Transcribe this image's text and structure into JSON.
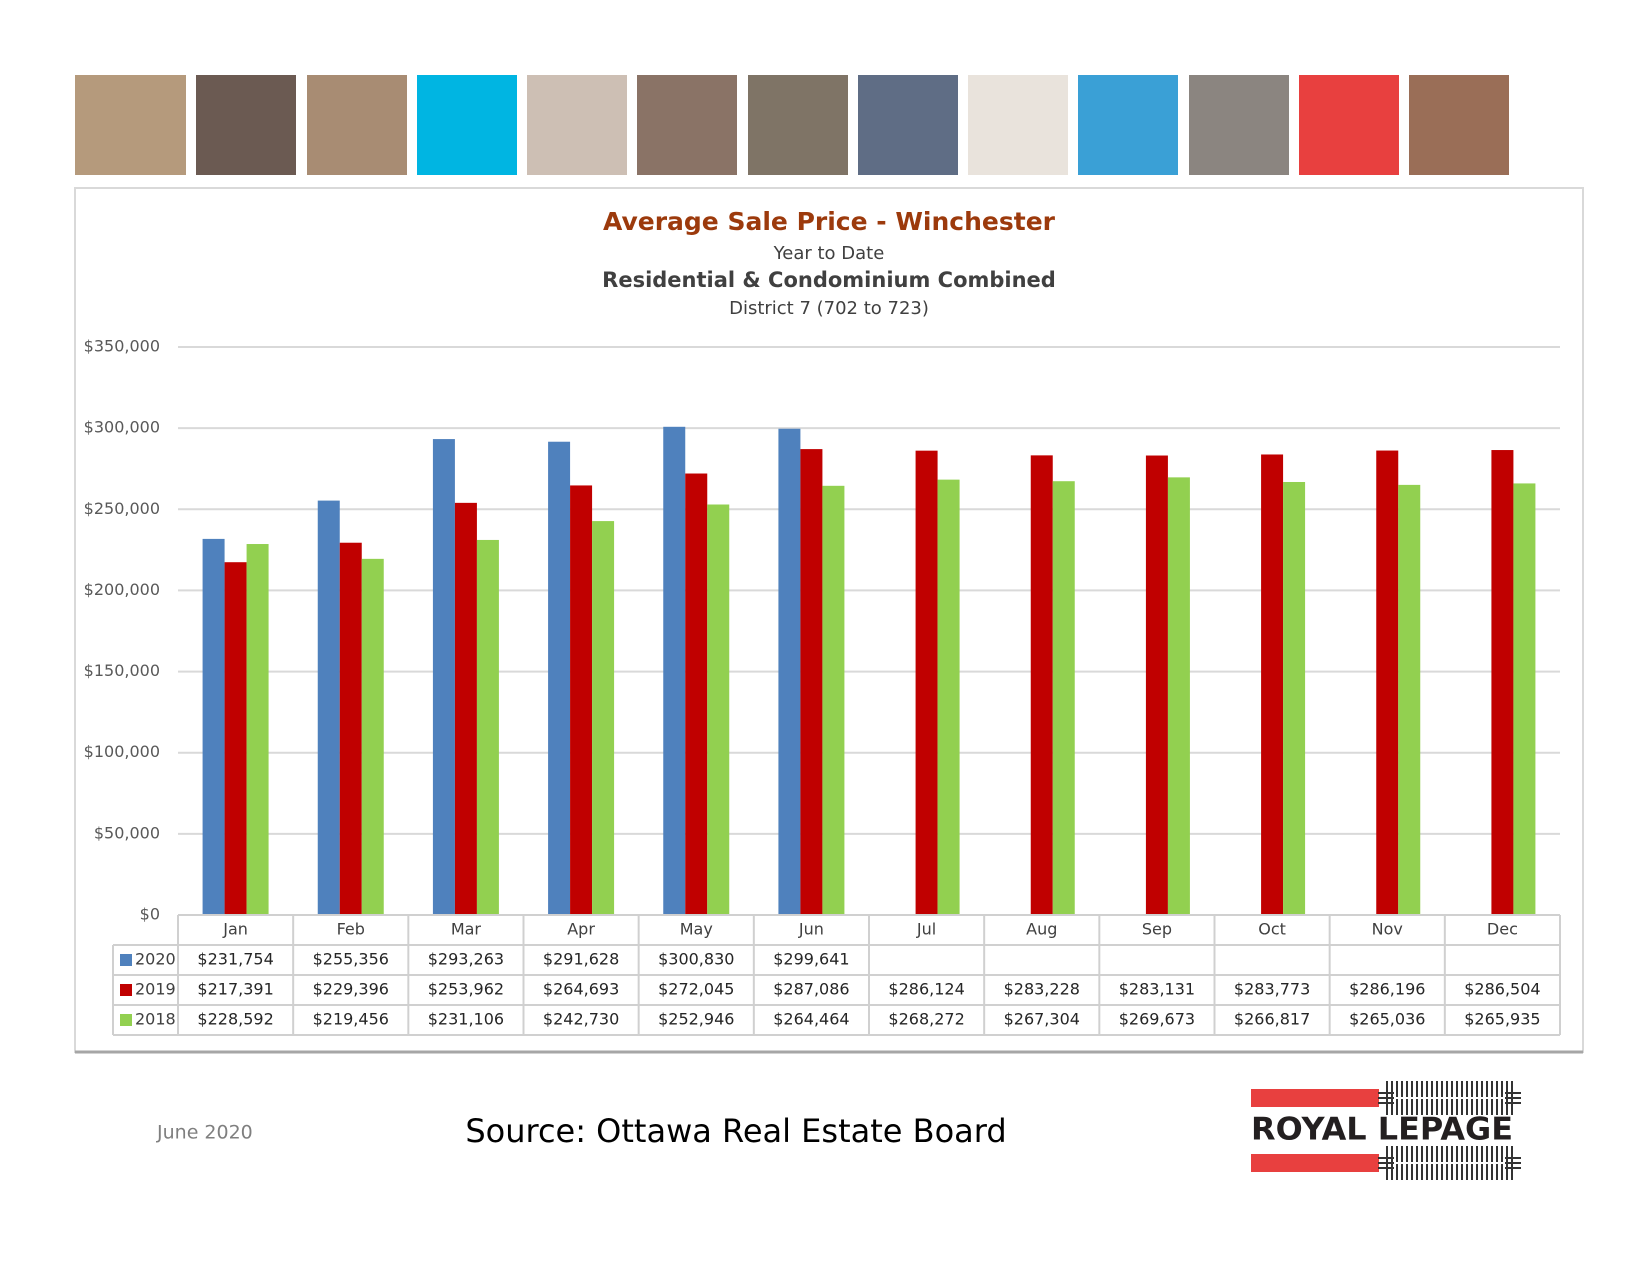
{
  "chart_data": {
    "type": "bar",
    "title": "Average Sale Price - Winchester",
    "subtitles": [
      "Year to Date",
      "Residential & Condominium Combined",
      "District 7 (702 to 723)"
    ],
    "categories": [
      "Jan",
      "Feb",
      "Mar",
      "Apr",
      "May",
      "Jun",
      "Jul",
      "Aug",
      "Sep",
      "Oct",
      "Nov",
      "Dec"
    ],
    "series": [
      {
        "name": "2020",
        "color": "#4f81bd",
        "values": [
          231754,
          255356,
          293263,
          291628,
          300830,
          299641,
          null,
          null,
          null,
          null,
          null,
          null
        ],
        "value_labels": [
          "$231,754",
          "$255,356",
          "$293,263",
          "$291,628",
          "$300,830",
          "$299,641",
          null,
          null,
          null,
          null,
          null,
          null
        ]
      },
      {
        "name": "2019",
        "color": "#c00000",
        "values": [
          217391,
          229396,
          253962,
          264693,
          272045,
          287086,
          286124,
          283228,
          283131,
          283773,
          286196,
          286504
        ],
        "value_labels": [
          "$217,391",
          "$229,396",
          "$253,962",
          "$264,693",
          "$272,045",
          "$287,086",
          "$286,124",
          "$283,228",
          "$283,131",
          "$283,773",
          "$286,196",
          "$286,504"
        ]
      },
      {
        "name": "2018",
        "color": "#92d050",
        "values": [
          228592,
          219456,
          231106,
          242730,
          252946,
          264464,
          268272,
          267304,
          269673,
          266817,
          265036,
          265935
        ],
        "value_labels": [
          "$228,592",
          "$219,456",
          "$231,106",
          "$242,730",
          "$252,946",
          "$264,464",
          "$268,272",
          "$267,304",
          "$269,673",
          "$266,817",
          "$265,036",
          "$265,935"
        ]
      }
    ],
    "ylim": [
      0,
      350000
    ],
    "yticks": [
      {
        "value": 0,
        "label": "$0"
      },
      {
        "value": 50000,
        "label": "$50,000"
      },
      {
        "value": 100000,
        "label": "$100,000"
      },
      {
        "value": 150000,
        "label": "$150,000"
      },
      {
        "value": 200000,
        "label": "$200,000"
      },
      {
        "value": 250000,
        "label": "$250,000"
      },
      {
        "value": 300000,
        "label": "$300,000"
      },
      {
        "value": 350000,
        "label": "$350,000"
      }
    ],
    "grid": true
  },
  "footer": {
    "date": "June 2020",
    "source": "Source: Ottawa Real Estate Board",
    "logo": "ROYAL LEPAGE"
  }
}
